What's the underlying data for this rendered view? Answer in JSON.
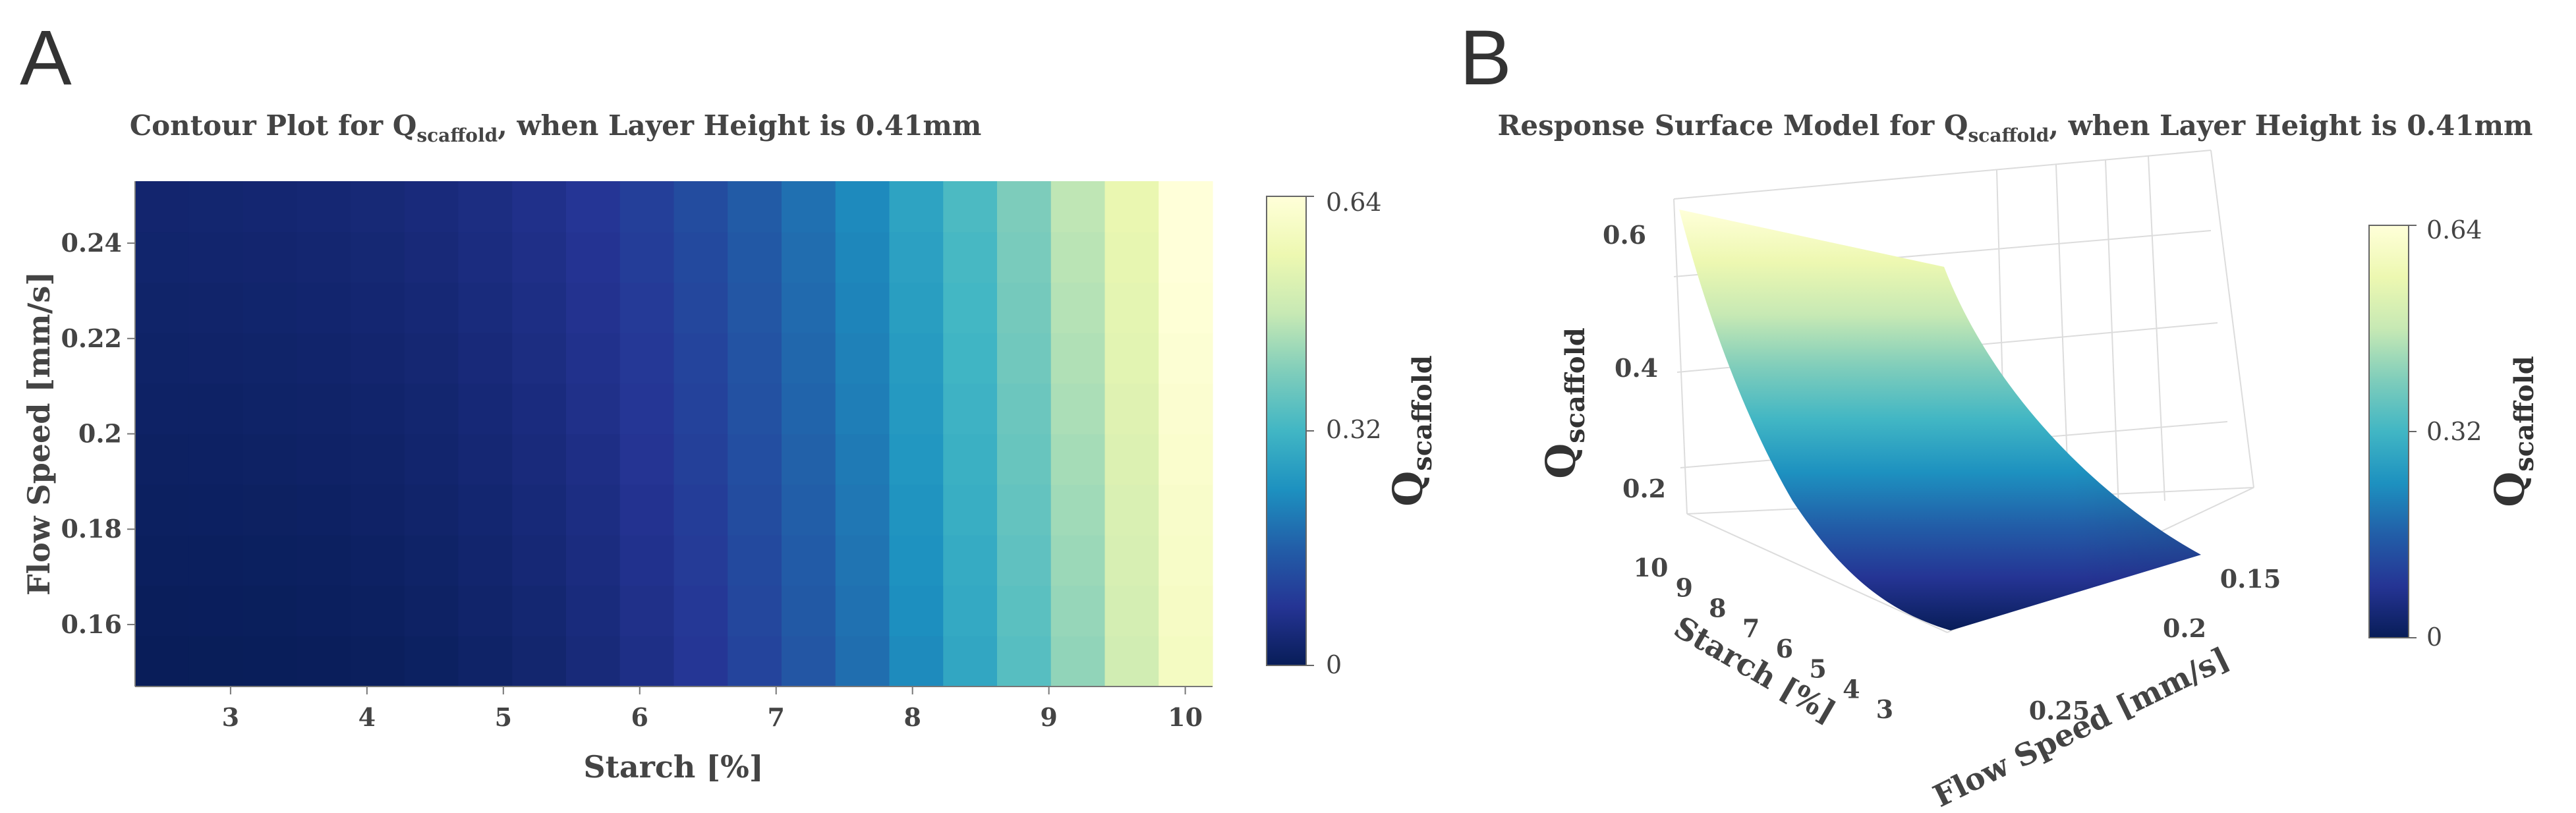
{
  "panels": [
    {
      "letter": "A"
    },
    {
      "letter": "B"
    }
  ],
  "colormap": [
    "#081d58",
    "#253494",
    "#225ea8",
    "#1d91c0",
    "#41b6c4",
    "#7fcdbb",
    "#c7e9b4",
    "#edf8b1",
    "#ffffd9"
  ],
  "chart_data": [
    {
      "type": "heatmap",
      "title": {
        "prefix": "Contour Plot for Q",
        "sub": "scaffold",
        "suffix": ", when Layer Height is 0.41mm"
      },
      "xlabel": "Starch [%]",
      "ylabel": "Flow Speed [mm/s]",
      "xlim": [
        2.3,
        10.2
      ],
      "ylim": [
        0.147,
        0.253
      ],
      "x_ticks": [
        {
          "value": 3,
          "label": "3"
        },
        {
          "value": 4,
          "label": "4"
        },
        {
          "value": 5,
          "label": "5"
        },
        {
          "value": 6,
          "label": "6"
        },
        {
          "value": 7,
          "label": "7"
        },
        {
          "value": 8,
          "label": "8"
        },
        {
          "value": 9,
          "label": "9"
        },
        {
          "value": 10,
          "label": "10"
        }
      ],
      "y_ticks": [
        {
          "value": 0.16,
          "label": "0.16"
        },
        {
          "value": 0.18,
          "label": "0.18"
        },
        {
          "value": 0.2,
          "label": "0.2"
        },
        {
          "value": 0.22,
          "label": "0.22"
        },
        {
          "value": 0.24,
          "label": "0.24"
        }
      ],
      "grid": {
        "x_cols": 20,
        "y_rows": 10
      },
      "z_model": "Q = 0.0025 + 0.0004*(S-2.3)^3 + 0.10*(F-0.147)*(S-2.3) approx; z increases strongly with Starch and slightly with Flow Speed",
      "colorbar": {
        "min": 0,
        "max": 0.64,
        "ticks": [
          "0",
          "0.32",
          "0.64"
        ],
        "label": "Q",
        "label_sub": "scaffold"
      }
    },
    {
      "type": "surface",
      "title": {
        "prefix": "Response Surface Model for Q",
        "sub": "scaffold",
        "suffix": ", when Layer Height is 0.41mm"
      },
      "xlabel": "Flow Speed [mm/s]",
      "ylabel": "Starch [%]",
      "zlabel": "Q",
      "zlabel_sub": "scaffold",
      "x_ticks": [
        "0.15",
        "0.2",
        "0.25"
      ],
      "y_ticks": [
        "10",
        "9",
        "8",
        "7",
        "6",
        "5",
        "4",
        "3"
      ],
      "z_ticks": [
        "0.2",
        "0.4",
        "0.6"
      ],
      "z_range": [
        0,
        0.64
      ],
      "colorbar": {
        "min": 0,
        "max": 0.64,
        "ticks": [
          "0",
          "0.32",
          "0.64"
        ],
        "label": "Q",
        "label_sub": "scaffold"
      }
    }
  ]
}
